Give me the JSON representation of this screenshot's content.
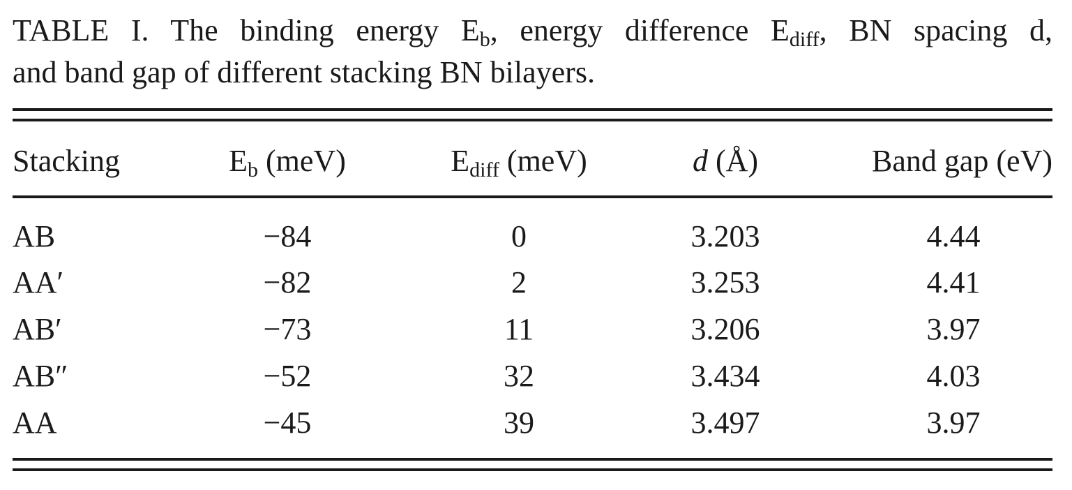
{
  "caption": {
    "line1_a": "TABLE I. The binding energy E",
    "line1_sub_b": "b",
    "line1_b": ", energy difference E",
    "line1_sub_diff": "diff",
    "line1_c": ", BN spacing d,",
    "line2": "and band gap of different stacking BN bilayers."
  },
  "table": {
    "headers": {
      "stacking": "Stacking",
      "eb_main": "E",
      "eb_sub": "b",
      "eb_unit": " (meV)",
      "ediff_main": "E",
      "ediff_sub": "diff",
      "ediff_unit": " (meV)",
      "d_main": "d",
      "d_unit": " (Å)",
      "gap": "Band gap (eV)"
    },
    "rows": [
      {
        "stacking": "AB",
        "eb": "−84",
        "ediff": "0",
        "d": "3.203",
        "gap": "4.44"
      },
      {
        "stacking": "AA′",
        "eb": "−82",
        "ediff": "2",
        "d": "3.253",
        "gap": "4.41"
      },
      {
        "stacking": "AB′",
        "eb": "−73",
        "ediff": "11",
        "d": "3.206",
        "gap": "3.97"
      },
      {
        "stacking": "AB″",
        "eb": "−52",
        "ediff": "32",
        "d": "3.434",
        "gap": "4.03"
      },
      {
        "stacking": "AA",
        "eb": "−45",
        "ediff": "39",
        "d": "3.497",
        "gap": "3.97"
      }
    ]
  }
}
